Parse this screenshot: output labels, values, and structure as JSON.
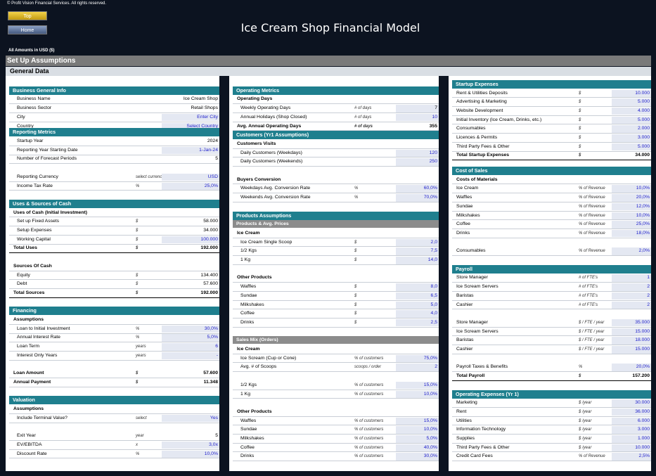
{
  "header": {
    "copyright": "© Profit Vision Financial Services. All rights reserved.",
    "top_label": "Top",
    "home_label": "Home",
    "title": "Ice Cream Shop Financial Model",
    "amounts": "All Amounts in  USD ($)",
    "setup": "Set Up Assumptions",
    "general": "General Data"
  },
  "col1": {
    "bgi": {
      "title": "Business General Info",
      "rows": [
        {
          "label": "Business Name",
          "value": "Ice Cream Shop"
        },
        {
          "label": "Business Sector",
          "value": "Retail Shops"
        },
        {
          "label": "City",
          "value": "Enter City"
        },
        {
          "label": "Country",
          "value": "Select Country"
        }
      ]
    },
    "rm": {
      "title": "Reporting Metrics",
      "rows": [
        {
          "label": "Startup Year",
          "value": "2024"
        },
        {
          "label": "Reporting Year Starting Date",
          "value": "1-Jan-24"
        },
        {
          "label": "Number of Forecast Periods",
          "value": "5"
        },
        {
          "label": "Reporting Currency",
          "unit": "select currency",
          "value": "USD"
        },
        {
          "label": "Income Tax Rate",
          "unit": "%",
          "value": "25,0%"
        }
      ]
    },
    "usc": {
      "title": "Uses & Sources of Cash",
      "rows": [
        {
          "label": "Uses of Cash (Initial Investment)"
        },
        {
          "label": "Set up Fixed Assets",
          "unit": "$",
          "value": "58.000"
        },
        {
          "label": "Setup Expenses",
          "unit": "$",
          "value": "34.000"
        },
        {
          "label": "Working Capital",
          "unit": "$",
          "value": "100.000"
        },
        {
          "label": "Total Uses",
          "unit": "$",
          "value": "192.000"
        },
        {
          "label": "Sources Of Cash"
        },
        {
          "label": "Equity",
          "unit": "$",
          "value": "134.400"
        },
        {
          "label": "Debt",
          "unit": "$",
          "value": "57.600"
        },
        {
          "label": "Total Sources",
          "unit": "$",
          "value": "192.000"
        }
      ]
    },
    "fin": {
      "title": "Financing",
      "rows": [
        {
          "label": "Assumptions"
        },
        {
          "label": "Loan to Initial Investment",
          "unit": "%",
          "value": "30,0%"
        },
        {
          "label": "Annual Interest Rate",
          "unit": "%",
          "value": "5,0%"
        },
        {
          "label": "Loan Term",
          "unit": "years",
          "value": "6"
        },
        {
          "label": "Interest Only Years",
          "unit": "years",
          "value": "-"
        },
        {
          "label": "Loan Amount",
          "unit": "$",
          "value": "57.600"
        },
        {
          "label": "Annual Payment",
          "unit": "$",
          "value": "11.348"
        }
      ]
    },
    "val": {
      "title": "Valuation",
      "rows": [
        {
          "label": "Assumptions"
        },
        {
          "label": "Include Terminal Value?",
          "unit": "select",
          "value": "Yes"
        },
        {
          "label": "Exit Year",
          "unit": "year",
          "value": "5"
        },
        {
          "label": "EV/EBITDA",
          "unit": "x",
          "value": "3,0x"
        },
        {
          "label": "Discount Rate",
          "unit": "%",
          "value": "10,0%"
        }
      ]
    }
  },
  "col2": {
    "om": {
      "title": "Operating Metrics",
      "rows": [
        {
          "label": "Operating Days"
        },
        {
          "label": "Weekly Operating Days",
          "unit": "# of days",
          "value": "7"
        },
        {
          "label": "Annual Holidays (Shop Closed)",
          "unit": "# of days",
          "value": "10"
        },
        {
          "label": "Avg. Annual Operating Days",
          "unit": "# of days",
          "value": "355"
        }
      ]
    },
    "cust": {
      "title": "Customers (Yr1 Assumptions)",
      "rows": [
        {
          "label": "Customers Visits"
        },
        {
          "label": "Daily Customers (Weekdays)",
          "value": "120"
        },
        {
          "label": "Daily Customers (Weekends)",
          "value": "250"
        },
        {
          "label": "Buyers Conversion"
        },
        {
          "label": "Weekdays Avg. Conversion Rate",
          "unit": "%",
          "value": "60,0%"
        },
        {
          "label": "Weekends Avg. Conversion Rate",
          "unit": "%",
          "value": "70,0%"
        }
      ]
    },
    "prod": {
      "title": "Products Assumptions",
      "sub": "Products & Avg. Prices",
      "rows": [
        {
          "label": "Ice Cream"
        },
        {
          "label": "Ice Cream Single Scoop",
          "unit": "$",
          "value": "2,0"
        },
        {
          "label": "1/2 Kgs",
          "unit": "$",
          "value": "7,5"
        },
        {
          "label": "1 Kg",
          "unit": "$",
          "value": "14,0"
        },
        {
          "label": "Other Products"
        },
        {
          "label": "Waffles",
          "unit": "$",
          "value": "8,0"
        },
        {
          "label": "Sundae",
          "unit": "$",
          "value": "6,5"
        },
        {
          "label": "Milkshakes",
          "unit": "$",
          "value": "5,0"
        },
        {
          "label": "Coffee",
          "unit": "$",
          "value": "4,0"
        },
        {
          "label": "Drinks",
          "unit": "$",
          "value": "2,5"
        }
      ]
    },
    "mix": {
      "sub": "Sales Mix (Orders)",
      "rows": [
        {
          "label": "Ice Cream"
        },
        {
          "label": "Ice Scream (Cup or Cone)",
          "unit": "% of customers",
          "value": "75,0%"
        },
        {
          "label": "Avg. # of Scoops",
          "unit": "scoops / order",
          "value": "2"
        },
        {
          "label": "1/2 Kgs",
          "unit": "% of customers",
          "value": "15,0%"
        },
        {
          "label": "1 Kg",
          "unit": "% of customers",
          "value": "10,0%"
        },
        {
          "label": "Other Products"
        },
        {
          "label": "Waffles",
          "unit": "% of customers",
          "value": "15,0%"
        },
        {
          "label": "Sundae",
          "unit": "% of customers",
          "value": "10,0%"
        },
        {
          "label": "Milkshakes",
          "unit": "% of customers",
          "value": "5,0%"
        },
        {
          "label": "Coffee",
          "unit": "% of customers",
          "value": "40,0%"
        },
        {
          "label": "Drinks",
          "unit": "% of customers",
          "value": "30,0%"
        }
      ]
    }
  },
  "col3": {
    "se": {
      "title": "Startup Expenses",
      "rows": [
        {
          "label": "Rent & Utilities Deposits",
          "unit": "$",
          "value": "10.000"
        },
        {
          "label": "Advertising & Marketing",
          "unit": "$",
          "value": "5.000"
        },
        {
          "label": "Website Development",
          "unit": "$",
          "value": "4.000"
        },
        {
          "label": "Initial Inventory (Ice Cream, Drinks, etc.)",
          "unit": "$",
          "value": "5.000"
        },
        {
          "label": "Consumables",
          "unit": "$",
          "value": "2.000"
        },
        {
          "label": "Licences & Permits",
          "unit": "$",
          "value": "3.000"
        },
        {
          "label": "Third Party Fees & Other",
          "unit": "$",
          "value": "5.000"
        },
        {
          "label": "Total Startup Expenses",
          "unit": "$",
          "value": "34.000"
        }
      ]
    },
    "cos": {
      "title": "Cost of Sales",
      "rows": [
        {
          "label": "Costs of Materials"
        },
        {
          "label": "Ice Cream",
          "unit": "% of Revenue",
          "value": "10,0%"
        },
        {
          "label": "Waffles",
          "unit": "% of Revenue",
          "value": "20,0%"
        },
        {
          "label": "Sundae",
          "unit": "% of Revenue",
          "value": "12,0%"
        },
        {
          "label": "Milkshakes",
          "unit": "% of Revenue",
          "value": "10,0%"
        },
        {
          "label": "Coffee",
          "unit": "% of Revenue",
          "value": "25,0%"
        },
        {
          "label": "Drinks",
          "unit": "% of Revenue",
          "value": "18,0%"
        },
        {
          "label": "Consumables",
          "unit": "% of Revenue",
          "value": "2,0%"
        }
      ]
    },
    "pay": {
      "title": "Payroll",
      "rows": [
        {
          "label": "Store Manager",
          "unit": "# of FTE's",
          "value": "1"
        },
        {
          "label": "Ice Scream Servers",
          "unit": "# of FTE's",
          "value": "2"
        },
        {
          "label": "Baristas",
          "unit": "# of FTE's",
          "value": "2"
        },
        {
          "label": "Cashier",
          "unit": "# of FTE's",
          "value": "2"
        },
        {
          "label": "Store Manager",
          "unit": "$ / FTE / year",
          "value": "35.000"
        },
        {
          "label": "Ice Scream Servers",
          "unit": "$ / FTE / year",
          "value": "15.000"
        },
        {
          "label": "Baristas",
          "unit": "$ / FTE / year",
          "value": "18.000"
        },
        {
          "label": "Cashier",
          "unit": "$ / FTE / year",
          "value": "15.000"
        },
        {
          "label": "Payroll Taxes & Benefits",
          "unit": "%",
          "value": "20,0%"
        },
        {
          "label": "Total Payroll",
          "unit": "$",
          "value": "157.200"
        }
      ]
    },
    "opex": {
      "title": "Operating Expenses (Yr 1)",
      "rows": [
        {
          "label": "Marketing",
          "unit": "$ /year",
          "value": "30.000"
        },
        {
          "label": "Rent",
          "unit": "$ /year",
          "value": "36.000"
        },
        {
          "label": "Utilities",
          "unit": "$ /year",
          "value": "6.000"
        },
        {
          "label": "Information Technology",
          "unit": "$ /year",
          "value": "3.000"
        },
        {
          "label": "Supplies",
          "unit": "$ /year",
          "value": "1.000"
        },
        {
          "label": "Third Party Fees & Other",
          "unit": "$ /year",
          "value": "10.000"
        },
        {
          "label": "Credit Card Fees",
          "unit": "% of Revenue",
          "value": "2,5%"
        }
      ]
    }
  }
}
